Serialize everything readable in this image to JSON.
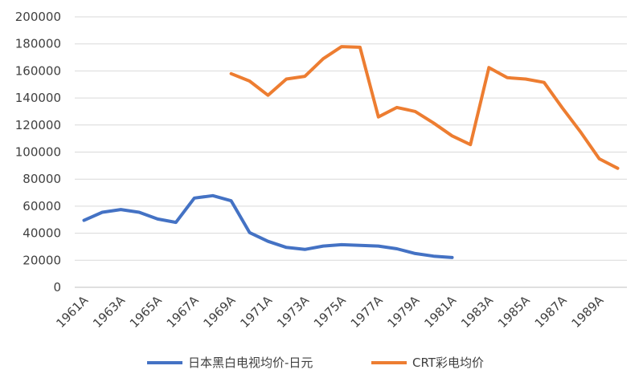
{
  "chart_data": {
    "type": "line",
    "x": [
      "1961A",
      "1962A",
      "1963A",
      "1964A",
      "1965A",
      "1966A",
      "1967A",
      "1968A",
      "1969A",
      "1970A",
      "1971A",
      "1972A",
      "1973A",
      "1974A",
      "1975A",
      "1976A",
      "1977A",
      "1978A",
      "1979A",
      "1980A",
      "1981A",
      "1982A",
      "1983A",
      "1984A",
      "1985A",
      "1986A",
      "1987A",
      "1988A",
      "1989A",
      "1990A"
    ],
    "x_tick_labels": [
      "1961A",
      "1963A",
      "1965A",
      "1967A",
      "1969A",
      "1971A",
      "1973A",
      "1975A",
      "1977A",
      "1979A",
      "1981A",
      "1983A",
      "1985A",
      "1987A",
      "1989A"
    ],
    "y_tick_labels": [
      "0",
      "20000",
      "40000",
      "60000",
      "80000",
      "100000",
      "120000",
      "140000",
      "160000",
      "180000",
      "200000"
    ],
    "ylim": [
      0,
      200000
    ],
    "grid": "horizontal",
    "legend_position": "bottom",
    "series": [
      {
        "name": "日本黑白电视均价-日元",
        "color": "#4472c4",
        "values": [
          49500,
          55500,
          57500,
          55500,
          50500,
          48000,
          66000,
          67800,
          64000,
          40500,
          34000,
          29500,
          28000,
          30500,
          31500,
          31000,
          30500,
          28500,
          25000,
          23000,
          22000,
          null,
          null,
          null,
          null,
          null,
          null,
          null,
          null,
          null
        ]
      },
      {
        "name": "CRT彩电均价",
        "color": "#ed7d31",
        "values": [
          null,
          null,
          null,
          null,
          null,
          null,
          null,
          null,
          158000,
          152500,
          142000,
          154000,
          156000,
          169000,
          178000,
          177500,
          126000,
          133000,
          130000,
          121500,
          112000,
          105500,
          162500,
          155000,
          154000,
          151500,
          132500,
          114500,
          95000,
          88000
        ]
      }
    ]
  }
}
